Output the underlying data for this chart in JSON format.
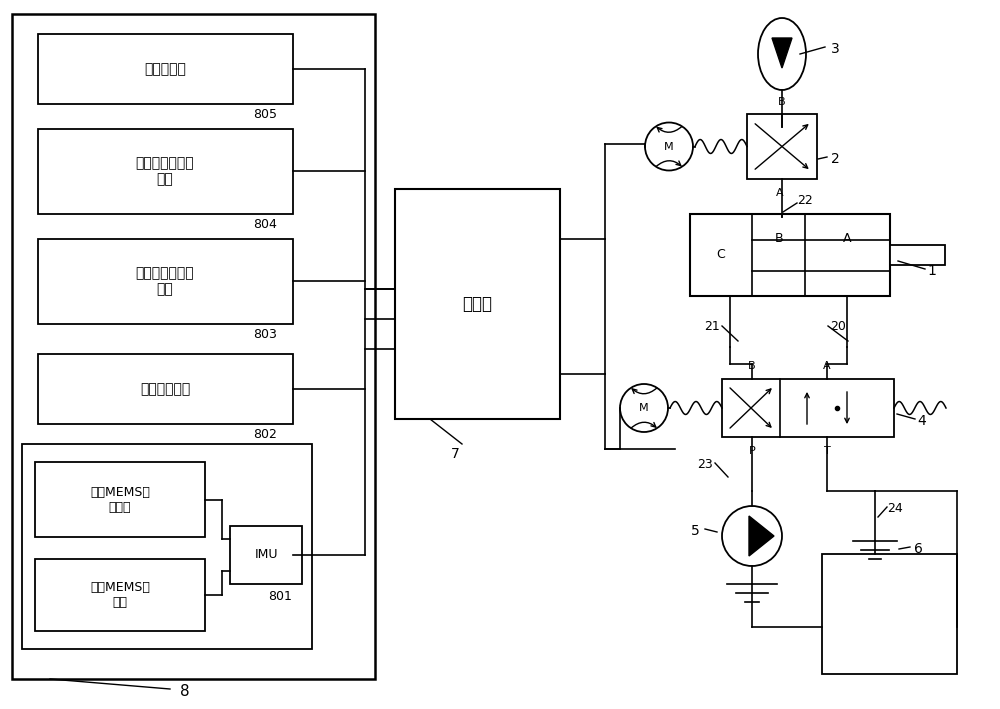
{
  "bg_color": "#ffffff",
  "lc": "#000000",
  "figsize": [
    10.0,
    7.09
  ],
  "dpi": 100,
  "sensor_labels": [
    "车速传感器",
    "加速踏板位移传\n感器",
    "制动踏板位移传\n感器",
    "转向角传感器"
  ],
  "sensor_nums": [
    "805",
    "804",
    "803",
    "802"
  ],
  "imu_labels": [
    "三轴MEMS加\n速度计",
    "三轴MEMS陀\n螺仪"
  ],
  "ctrl_label": "控制器",
  "num_labels": {
    "n1": "1",
    "n2": "2",
    "n3": "3",
    "n4": "4",
    "n5": "5",
    "n6": "6",
    "n7": "7",
    "n8": "8",
    "n20": "20",
    "n21": "21",
    "n22": "22",
    "n23": "23",
    "n24": "24",
    "n801": "801",
    "imu": "IMU",
    "M": "M",
    "A": "A",
    "B": "B",
    "C": "C",
    "P": "P",
    "T": "T"
  }
}
